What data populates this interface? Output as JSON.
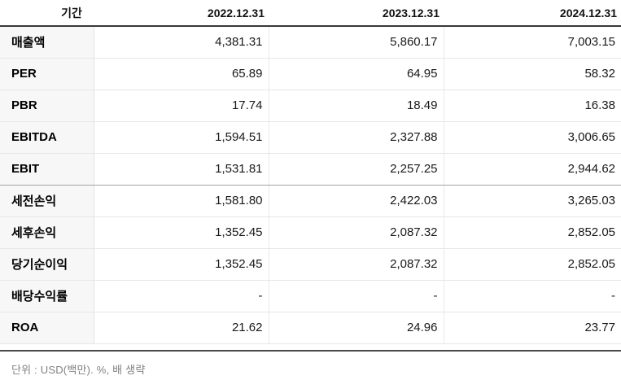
{
  "chart_data": {
    "type": "table",
    "period_label": "기간",
    "columns": [
      "2022.12.31",
      "2023.12.31",
      "2024.12.31"
    ],
    "rows": [
      {
        "label": "매출액",
        "values": [
          "4,381.31",
          "5,860.17",
          "7,003.15"
        ]
      },
      {
        "label": "PER",
        "values": [
          "65.89",
          "64.95",
          "58.32"
        ]
      },
      {
        "label": "PBR",
        "values": [
          "17.74",
          "18.49",
          "16.38"
        ]
      },
      {
        "label": "EBITDA",
        "values": [
          "1,594.51",
          "2,327.88",
          "3,006.65"
        ]
      },
      {
        "label": "EBIT",
        "values": [
          "1,531.81",
          "2,257.25",
          "2,944.62"
        ]
      },
      {
        "label": "세전손익",
        "values": [
          "1,581.80",
          "2,422.03",
          "3,265.03"
        ]
      },
      {
        "label": "세후손익",
        "values": [
          "1,352.45",
          "2,087.32",
          "2,852.05"
        ]
      },
      {
        "label": "당기순이익",
        "values": [
          "1,352.45",
          "2,087.32",
          "2,852.05"
        ]
      },
      {
        "label": "배당수익률",
        "values": [
          "-",
          "-",
          "-"
        ]
      },
      {
        "label": "ROA",
        "values": [
          "21.62",
          "24.96",
          "23.77"
        ]
      }
    ],
    "section_dividers_after": [
      "EBIT"
    ],
    "footnote": "단위 : USD(백만). %, 배 생략"
  },
  "colors": {
    "header_rule": "#383838",
    "label_column_bg": "#f7f7f7",
    "row_separator": "#e7e7e7",
    "section_divider": "#a3a3a3",
    "bottom_rule": "#4a4a4a",
    "footnote_text": "#818181"
  }
}
